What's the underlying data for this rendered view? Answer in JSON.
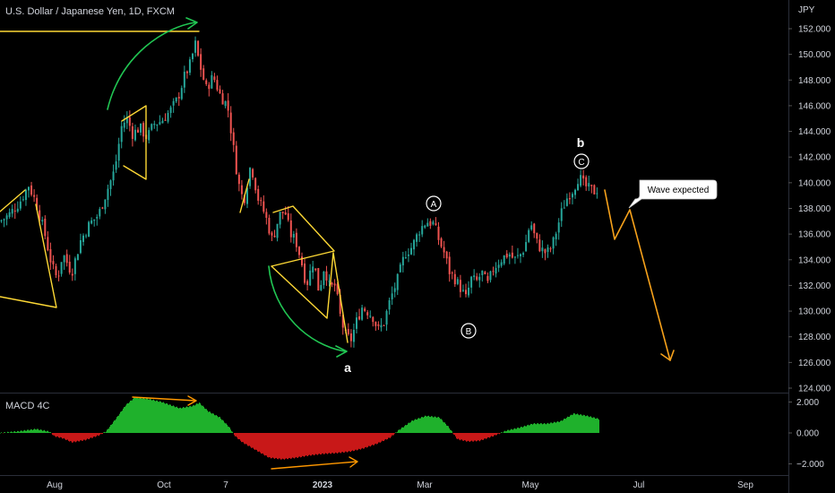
{
  "symbol": {
    "title": "U.S. Dollar / Japanese Yen, 1D, FXCM",
    "currency": "JPY"
  },
  "chart_data": [
    {
      "type": "candlestick",
      "title": "U.S. Dollar / Japanese Yen, 1D, FXCM",
      "ylabel": "JPY",
      "ylim": [
        123.5,
        153.3
      ],
      "y_ticks": [
        "152.000",
        "150.000",
        "148.000",
        "146.000",
        "144.000",
        "142.000",
        "140.000",
        "138.000",
        "136.000",
        "134.000",
        "132.000",
        "130.000",
        "128.000",
        "126.000",
        "124.000"
      ],
      "x_ticks": [
        "Aug",
        "Oct",
        "7",
        "2023",
        "Mar",
        "May",
        "Jul",
        "Sep"
      ],
      "price_path": [
        [
          0,
          137.0
        ],
        [
          10,
          137.5
        ],
        [
          22,
          138.5
        ],
        [
          32,
          139.8
        ],
        [
          40,
          138.5
        ],
        [
          50,
          136.0
        ],
        [
          58,
          133.5
        ],
        [
          64,
          132.5
        ],
        [
          70,
          134.5
        ],
        [
          80,
          133.0
        ],
        [
          90,
          135.5
        ],
        [
          100,
          136.8
        ],
        [
          110,
          137.5
        ],
        [
          120,
          139.5
        ],
        [
          128,
          141.0
        ],
        [
          136,
          144.5
        ],
        [
          142,
          145.0
        ],
        [
          148,
          143.8
        ],
        [
          156,
          144.3
        ],
        [
          164,
          143.5
        ],
        [
          172,
          144.6
        ],
        [
          180,
          144.8
        ],
        [
          190,
          145.6
        ],
        [
          198,
          146.5
        ],
        [
          206,
          148.3
        ],
        [
          212,
          149.2
        ],
        [
          218,
          150.8
        ],
        [
          222,
          149.5
        ],
        [
          230,
          147.3
        ],
        [
          238,
          148.3
        ],
        [
          246,
          146.8
        ],
        [
          254,
          146.0
        ],
        [
          260,
          143.0
        ],
        [
          266,
          140.0
        ],
        [
          272,
          138.5
        ],
        [
          280,
          141.5
        ],
        [
          288,
          138.8
        ],
        [
          296,
          137.5
        ],
        [
          304,
          135.5
        ],
        [
          312,
          137.5
        ],
        [
          318,
          137.8
        ],
        [
          324,
          136.0
        ],
        [
          330,
          135.5
        ],
        [
          336,
          134.0
        ],
        [
          342,
          132.0
        ],
        [
          350,
          134.0
        ],
        [
          356,
          131.5
        ],
        [
          362,
          133.5
        ],
        [
          368,
          131.8
        ],
        [
          374,
          132.0
        ],
        [
          380,
          129.5
        ],
        [
          386,
          128.0
        ],
        [
          392,
          127.8
        ],
        [
          398,
          129.2
        ],
        [
          404,
          130.3
        ],
        [
          410,
          130.0
        ],
        [
          416,
          129.6
        ],
        [
          422,
          128.5
        ],
        [
          428,
          129.0
        ],
        [
          436,
          131.0
        ],
        [
          444,
          132.5
        ],
        [
          452,
          134.5
        ],
        [
          460,
          135.0
        ],
        [
          468,
          136.3
        ],
        [
          476,
          137.0
        ],
        [
          484,
          136.8
        ],
        [
          490,
          135.5
        ],
        [
          496,
          134.5
        ],
        [
          502,
          133.0
        ],
        [
          508,
          132.5
        ],
        [
          514,
          131.8
        ],
        [
          520,
          131.0
        ],
        [
          526,
          132.5
        ],
        [
          532,
          132.3
        ],
        [
          538,
          133.0
        ],
        [
          544,
          132.0
        ],
        [
          550,
          133.2
        ],
        [
          556,
          133.8
        ],
        [
          562,
          134.2
        ],
        [
          568,
          134.5
        ],
        [
          574,
          134.0
        ],
        [
          580,
          134.3
        ],
        [
          586,
          135.0
        ],
        [
          592,
          137.0
        ],
        [
          598,
          135.5
        ],
        [
          604,
          134.8
        ],
        [
          610,
          134.5
        ],
        [
          616,
          135.0
        ],
        [
          622,
          136.5
        ],
        [
          628,
          138.0
        ],
        [
          634,
          139.0
        ],
        [
          640,
          139.5
        ],
        [
          646,
          140.5
        ],
        [
          652,
          139.8
        ],
        [
          658,
          139.5
        ],
        [
          664,
          139.3
        ],
        [
          668,
          139.6
        ]
      ],
      "series": [
        {
          "name": "MACD 4C",
          "type": "histogram",
          "ylim": [
            -2.3,
            2.3
          ],
          "y_ticks": [
            "2.000",
            "0.000",
            "−2.000"
          ],
          "values_path": [
            [
              0,
              0.0
            ],
            [
              20,
              0.1
            ],
            [
              40,
              0.25
            ],
            [
              55,
              0.08
            ],
            [
              60,
              -0.2
            ],
            [
              70,
              -0.35
            ],
            [
              80,
              -0.6
            ],
            [
              95,
              -0.45
            ],
            [
              110,
              -0.15
            ],
            [
              118,
              0.1
            ],
            [
              130,
              1.0
            ],
            [
              140,
              1.8
            ],
            [
              150,
              2.3
            ],
            [
              165,
              2.2
            ],
            [
              180,
              2.0
            ],
            [
              200,
              1.6
            ],
            [
              215,
              1.75
            ],
            [
              222,
              1.95
            ],
            [
              232,
              1.4
            ],
            [
              245,
              1.0
            ],
            [
              255,
              0.4
            ],
            [
              262,
              -0.2
            ],
            [
              270,
              -0.6
            ],
            [
              285,
              -1.1
            ],
            [
              300,
              -1.6
            ],
            [
              315,
              -1.7
            ],
            [
              330,
              -1.6
            ],
            [
              345,
              -1.45
            ],
            [
              360,
              -1.35
            ],
            [
              375,
              -1.3
            ],
            [
              390,
              -1.2
            ],
            [
              405,
              -1.0
            ],
            [
              420,
              -0.7
            ],
            [
              435,
              -0.3
            ],
            [
              445,
              0.2
            ],
            [
              460,
              0.8
            ],
            [
              475,
              1.1
            ],
            [
              490,
              1.0
            ],
            [
              500,
              0.4
            ],
            [
              510,
              -0.4
            ],
            [
              522,
              -0.55
            ],
            [
              535,
              -0.5
            ],
            [
              550,
              -0.2
            ],
            [
              565,
              0.15
            ],
            [
              580,
              0.35
            ],
            [
              595,
              0.6
            ],
            [
              610,
              0.6
            ],
            [
              625,
              0.75
            ],
            [
              640,
              1.25
            ],
            [
              655,
              1.1
            ],
            [
              668,
              0.9
            ]
          ]
        }
      ],
      "wave_labels": [
        "a",
        "b"
      ],
      "circled_labels": [
        "A",
        "B",
        "C"
      ],
      "callout": "Wave expected",
      "colors": {
        "up": "#26a69a",
        "down": "#ef5350",
        "macd_pos": "#1fb12c",
        "macd_neg": "#c81818",
        "annot_yellow": "#fdd835",
        "annot_green": "#21c653",
        "annot_orange": "#ff9800",
        "projection": "#f7a21b"
      }
    }
  ]
}
